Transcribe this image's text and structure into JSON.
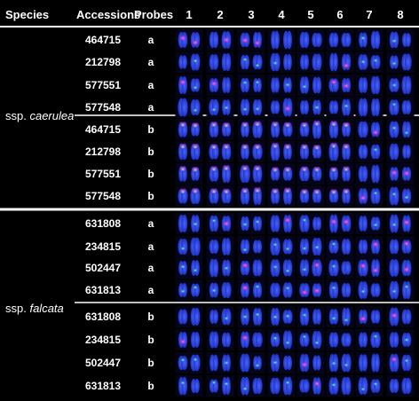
{
  "header": {
    "species": "Species",
    "accessions": "Accessions",
    "probes": "Probes",
    "columns": [
      "1",
      "2",
      "3",
      "4",
      "5",
      "6",
      "7",
      "8"
    ]
  },
  "groups": [
    {
      "label_prefix": "ssp. ",
      "label_name": "caerulea",
      "blocks": [
        {
          "rows": [
            {
              "accession": "464715",
              "probe": "a"
            },
            {
              "accession": "212798",
              "probe": "a"
            },
            {
              "accession": "577551",
              "probe": "a"
            },
            {
              "accession": "577548",
              "probe": "a"
            }
          ]
        },
        {
          "rows": [
            {
              "accession": "464715",
              "probe": "b"
            },
            {
              "accession": "212798",
              "probe": "b"
            },
            {
              "accession": "577551",
              "probe": "b"
            },
            {
              "accession": "577548",
              "probe": "b"
            }
          ]
        }
      ]
    },
    {
      "label_prefix": "ssp. ",
      "label_name": "falcata",
      "blocks": [
        {
          "rows": [
            {
              "accession": "631808",
              "probe": "a"
            },
            {
              "accession": "234815",
              "probe": "a"
            },
            {
              "accession": "502447",
              "probe": "a"
            },
            {
              "accession": "631813",
              "probe": "a"
            }
          ]
        },
        {
          "rows": [
            {
              "accession": "631808",
              "probe": "b"
            },
            {
              "accession": "234815",
              "probe": "b"
            },
            {
              "accession": "502447",
              "probe": "b"
            },
            {
              "accession": "631813",
              "probe": "b"
            }
          ]
        }
      ]
    }
  ],
  "colors": {
    "background": "#000000",
    "chromosome": "#1f33d6",
    "chromosome_core": "#3a52f0",
    "signal_magenta": "#ff2bd6",
    "signal_green": "#3df0b0",
    "signal_white": "#e8f4ff",
    "divider": "#ffffff"
  }
}
